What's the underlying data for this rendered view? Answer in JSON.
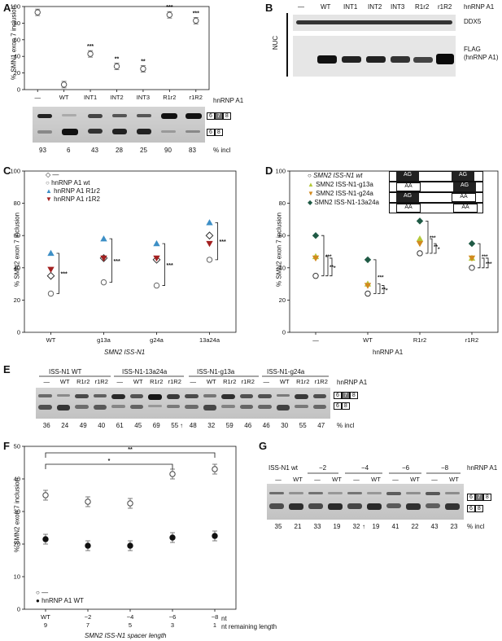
{
  "panel_labels": {
    "A": "A",
    "B": "B",
    "C": "C",
    "D": "D",
    "E": "E",
    "F": "F",
    "G": "G"
  },
  "panelA": {
    "ylabel": "% SMN1 exon 7 inclusion",
    "yticks": [
      "0",
      "20",
      "40",
      "60",
      "80",
      "100"
    ],
    "categories": [
      "—",
      "WT",
      "INT1",
      "INT2",
      "INT3",
      "R1r2",
      "r1R2"
    ],
    "values": [
      93,
      6,
      43,
      28,
      25,
      90,
      83
    ],
    "sig": [
      "",
      "",
      "***",
      "**",
      "**",
      "***",
      "***"
    ],
    "axis_caption": "hnRNP A1",
    "band_labels": [
      "6",
      "7",
      "8"
    ],
    "band_labels_short": [
      "6",
      "8"
    ],
    "incl_values": [
      "93",
      "6",
      "43",
      "28",
      "25",
      "90",
      "83"
    ],
    "incl_label": "% incl"
  },
  "panelB": {
    "lanes": [
      "—",
      "WT",
      "INT1",
      "INT2",
      "INT3",
      "R1r2",
      "r1R2"
    ],
    "axis_caption": "hnRNP A1",
    "side": "NUC",
    "blot1": "DDX5",
    "blot2_line1": "FLAG",
    "blot2_line2": "(hnRNP A1)"
  },
  "panelC": {
    "ylabel": "% SMN2 exon 7 inclusion",
    "yticks": [
      "0",
      "20",
      "40",
      "60",
      "80",
      "100"
    ],
    "categories": [
      "WT",
      "g13a",
      "g24a",
      "13a24a"
    ],
    "xlabel": "SMN2 ISS-N1",
    "legend": [
      "—",
      "hnRNP A1 wt",
      "hnRNP A1 R1r2",
      "hnRNP A1 r1R2"
    ],
    "sig": "***",
    "series": [
      {
        "values": [
          35,
          46,
          45,
          60
        ]
      },
      {
        "values": [
          24,
          31,
          29,
          45
        ]
      },
      {
        "values": [
          49,
          58,
          55,
          68
        ]
      },
      {
        "values": [
          39,
          46,
          46,
          55
        ]
      }
    ]
  },
  "panelD": {
    "ylabel": "% SMN2 exon 7 inclusion",
    "yticks": [
      "0",
      "20",
      "40",
      "60",
      "80",
      "100"
    ],
    "categories": [
      "—",
      "WT",
      "R1r2",
      "r1R2"
    ],
    "xlabel": "hnRNP A1",
    "legend": [
      "SMN2 ISS-N1 wt",
      "SMN2 ISS-N1-g13a",
      "SMN2 ISS-N1-g24a",
      "SMN2 ISS-N1-13a24a"
    ],
    "motifs": [
      [
        "AG",
        "AG"
      ],
      [
        "AA",
        "AG"
      ],
      [
        "AG",
        "AA"
      ],
      [
        "AA",
        "AA"
      ]
    ],
    "sig3": "***",
    "sig2": "**",
    "sig1": "*",
    "series": [
      {
        "values": [
          35,
          24,
          49,
          40
        ]
      },
      {
        "values": [
          47,
          30,
          58,
          46
        ]
      },
      {
        "values": [
          46,
          29,
          55,
          46
        ]
      },
      {
        "values": [
          60,
          45,
          69,
          55
        ]
      }
    ]
  },
  "panelE": {
    "groups": [
      "ISS-N1 WT",
      "ISS-N1-13a24a",
      "ISS-N1-g13a",
      "ISS-N1-g24a"
    ],
    "lanes": [
      "—",
      "WT",
      "R1r2",
      "r1R2",
      "—",
      "WT",
      "R1r2",
      "r1R2",
      "—",
      "WT",
      "R1r2",
      "r1R2",
      "—",
      "WT",
      "R1r2",
      "r1R2"
    ],
    "axis_caption": "hnRNP A1",
    "incl_values": [
      "36",
      "24",
      "49",
      "40",
      "61",
      "45",
      "69",
      "55",
      "48",
      "32",
      "59",
      "46",
      "46",
      "30",
      "55",
      "47"
    ],
    "incl_label": "% incl",
    "arrow": "↑"
  },
  "panelF": {
    "ylabel": "% SMN2 exon 7 inclusion",
    "yticks": [
      "0",
      "10",
      "20",
      "30",
      "40",
      "50"
    ],
    "categories": [
      "WT",
      "−2",
      "−4",
      "−6",
      "−8"
    ],
    "remaining": [
      "9",
      "7",
      "5",
      "3",
      "1"
    ],
    "nt_label": "nt",
    "remaining_label": "nt remaining length",
    "xlabel": "SMN2 ISS-N1 spacer length",
    "legend": [
      "—",
      "hnRNP A1 WT"
    ],
    "sig_top": "**",
    "sig_bottom": "*",
    "series": [
      {
        "values": [
          35,
          33,
          32.5,
          41.5,
          43
        ]
      },
      {
        "values": [
          21.5,
          19.5,
          19.5,
          22,
          22.5
        ]
      }
    ]
  },
  "panelG": {
    "groups": [
      "ISS-N1 wt",
      "−2",
      "−4",
      "−6",
      "−8"
    ],
    "lanes": [
      "—",
      "WT",
      "—",
      "WT",
      "—",
      "WT",
      "—",
      "WT",
      "—",
      "WT"
    ],
    "axis_caption": "hnRNP A1",
    "incl_values": [
      "35",
      "21",
      "33",
      "19",
      "32",
      "19",
      "41",
      "22",
      "43",
      "23"
    ],
    "incl_label": "% incl",
    "arrow": "↑"
  }
}
